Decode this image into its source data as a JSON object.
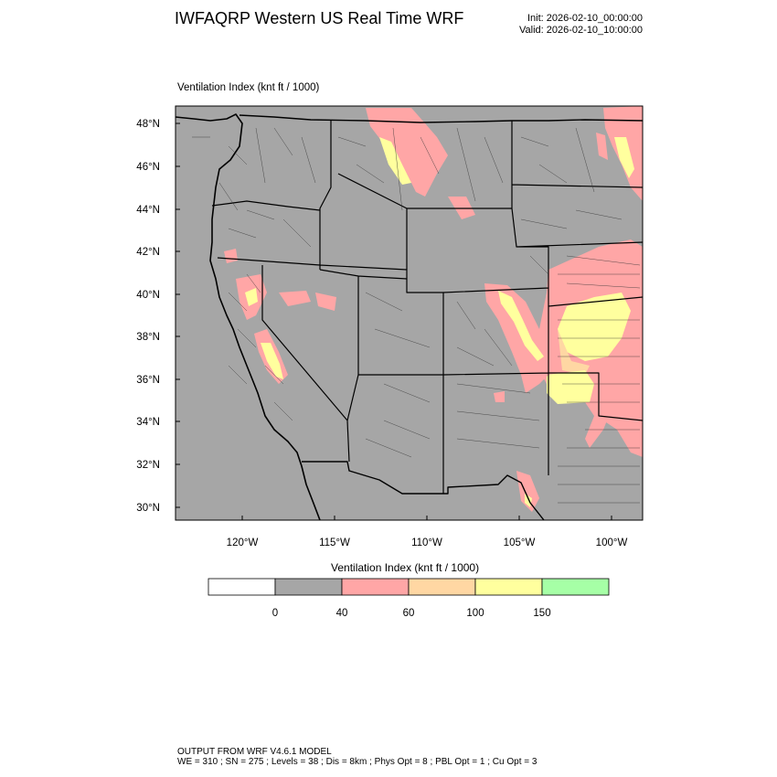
{
  "header": {
    "title": "IWFAQRP Western US Real Time WRF",
    "init": "Init: 2026-02-10_00:00:00",
    "valid": "Valid: 2026-02-10_10:00:00"
  },
  "map": {
    "subtitle": "Ventilation Index   (knt ft / 1000)",
    "lat_labels": [
      "48°N",
      "46°N",
      "44°N",
      "42°N",
      "40°N",
      "38°N",
      "36°N",
      "34°N",
      "32°N",
      "30°N"
    ],
    "lon_labels": [
      "120°W",
      "115°W",
      "110°W",
      "105°W",
      "100°W"
    ],
    "colors": {
      "background": "#a6a6a6",
      "low": "#ffa6a6",
      "mid": "#ffd7a3",
      "high": "#ffff9e"
    }
  },
  "legend": {
    "title": "Ventilation Index  (knt ft / 1000)",
    "colors": [
      "#ffffff",
      "#a6a6a6",
      "#ffa6a6",
      "#ffd7a3",
      "#ffff9e",
      "#a6ffa6"
    ],
    "tick_labels": [
      "0",
      "40",
      "60",
      "100",
      "150"
    ]
  },
  "footer": {
    "line1": "OUTPUT FROM WRF V4.6.1 MODEL",
    "line2": "WE = 310 ; SN = 275 ; Levels = 38 ; Dis = 8km ; Phys Opt = 8 ; PBL Opt = 1 ; Cu Opt = 3"
  }
}
